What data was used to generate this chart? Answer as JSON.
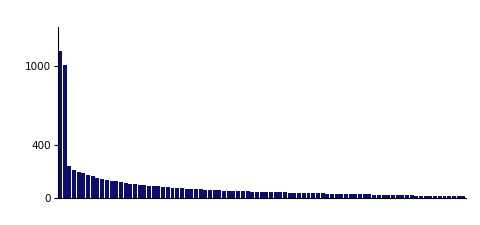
{
  "bar_color": "#0d0d6b",
  "background_color": "#ffffff",
  "ylim": [
    0,
    1300
  ],
  "yticks": [
    0,
    400,
    1000
  ],
  "ytick_labels": [
    "0",
    "400",
    "1000"
  ],
  "bar_values": [
    1120,
    1010,
    240,
    215,
    200,
    188,
    178,
    165,
    155,
    148,
    140,
    133,
    126,
    120,
    115,
    110,
    106,
    102,
    98,
    94,
    91,
    88,
    85,
    82,
    79,
    77,
    74,
    72,
    70,
    68,
    66,
    64,
    62,
    60,
    59,
    57,
    56,
    54,
    53,
    52,
    50,
    49,
    48,
    47,
    46,
    45,
    44,
    43,
    42,
    41,
    40,
    39,
    38,
    37,
    36,
    35,
    35,
    34,
    33,
    32,
    31,
    30,
    29,
    29,
    28,
    27,
    27,
    26,
    25,
    24,
    23,
    23,
    22,
    21,
    20,
    20,
    19,
    18,
    17,
    17,
    16,
    15,
    15,
    14,
    13,
    12,
    12
  ],
  "figsize": [
    4.8,
    2.25
  ],
  "dpi": 100
}
